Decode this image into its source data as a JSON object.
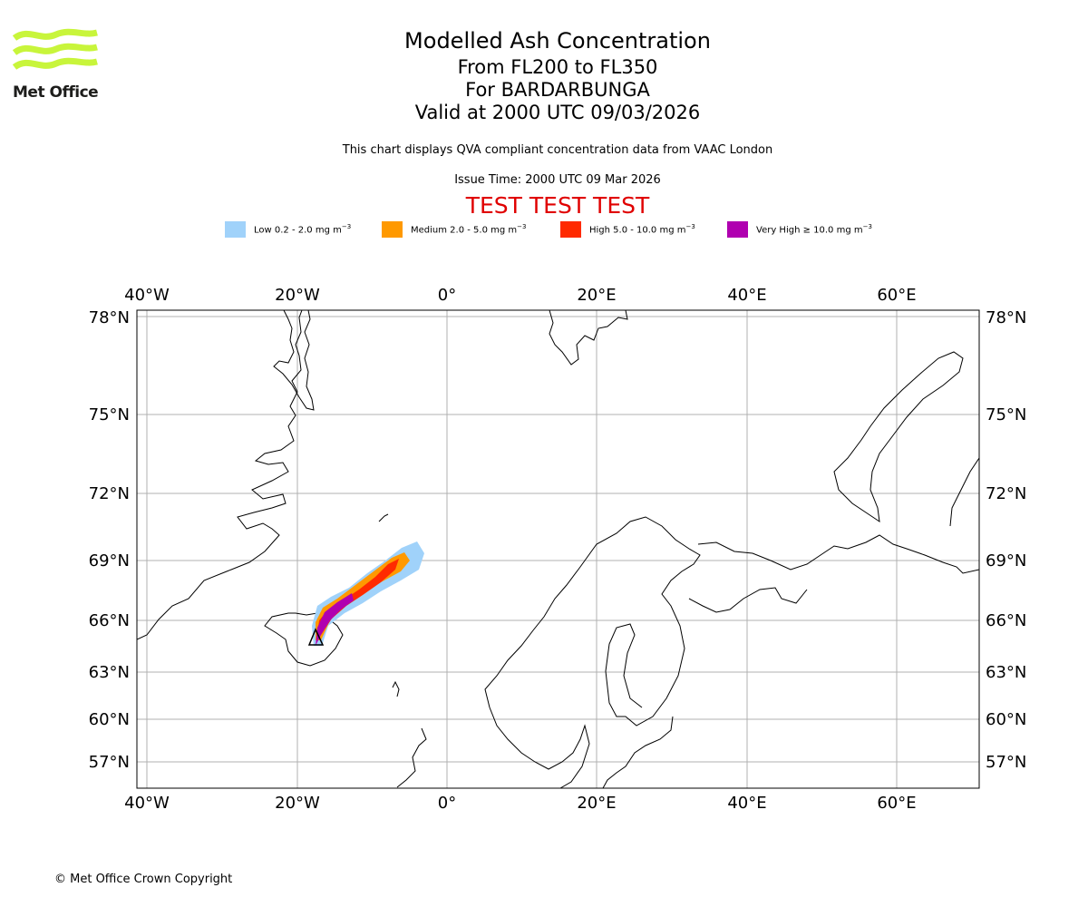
{
  "brand": {
    "name": "Met Office",
    "logo_color": "#c8f53b"
  },
  "header": {
    "title": "Modelled Ash Concentration",
    "level": "From FL200 to FL350",
    "volcano": "For BARDARBUNGA",
    "valid": "Valid at 2000 UTC 09/03/2026",
    "description": "This chart displays QVA compliant concentration data from VAAC London",
    "issue_time": "Issue Time: 2000 UTC 09 Mar 2026",
    "banner": "TEST TEST TEST",
    "banner_color": "#e00000"
  },
  "legend": [
    {
      "label": "Low 0.2 - 2.0 mg m",
      "exp": "−3",
      "color": "#a0d2fa"
    },
    {
      "label": "Medium 2.0 - 5.0 mg m",
      "exp": "−3",
      "color": "#ff9900"
    },
    {
      "label": "High 5.0 - 10.0 mg m",
      "exp": "−3",
      "color": "#ff2a00"
    },
    {
      "label": "Very High  ≥  10.0 mg m",
      "exp": "−3",
      "color": "#b000b0"
    }
  ],
  "map": {
    "lon_ticks": [
      "40°W",
      "20°W",
      "0°",
      "20°E",
      "40°E",
      "60°E"
    ],
    "lat_ticks": [
      "78°N",
      "75°N",
      "72°N",
      "69°N",
      "66°N",
      "63°N",
      "60°N",
      "57°N"
    ],
    "lon_range": [
      -41.5,
      71
    ],
    "lat_range": [
      55.5,
      78.3
    ],
    "grid": true,
    "gridline_color": "#b0b0b0",
    "volcano_marker": "triangle-outline",
    "volcano_location": {
      "lon": -17.5,
      "lat": 64.6
    }
  },
  "footer": {
    "copyright": "© Met Office Crown Copyright"
  }
}
